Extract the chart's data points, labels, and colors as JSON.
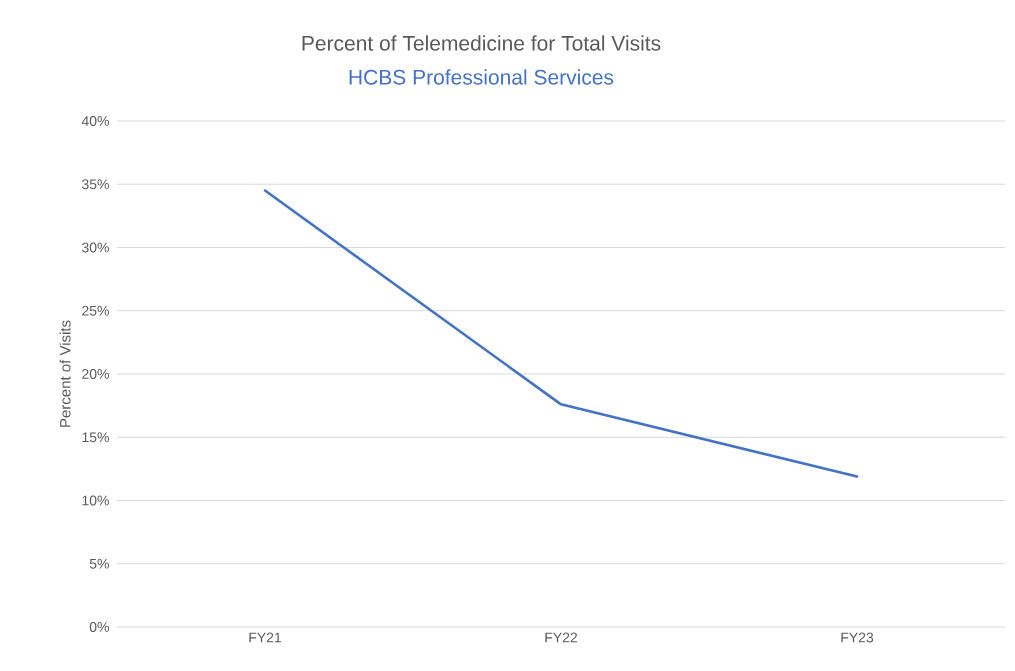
{
  "chart_data": {
    "type": "line",
    "title": "Percent of Telemedicine for Total Visits",
    "subtitle": "HCBS Professional Services",
    "ylabel": "Percent of Visits",
    "categories": [
      "FY21",
      "FY22",
      "FY23"
    ],
    "series": [
      {
        "color": "#4472c4",
        "values": [
          34.5,
          17.6,
          11.9
        ]
      }
    ],
    "ylim": [
      0,
      40
    ],
    "yticks": [
      {
        "value": 0,
        "label": "0%"
      },
      {
        "value": 5,
        "label": "5%"
      },
      {
        "value": 10,
        "label": "10%"
      },
      {
        "value": 15,
        "label": "15%"
      },
      {
        "value": 20,
        "label": "20%"
      },
      {
        "value": 25,
        "label": "25%"
      },
      {
        "value": 30,
        "label": "30%"
      },
      {
        "value": 35,
        "label": "35%"
      },
      {
        "value": 40,
        "label": "40%"
      }
    ],
    "grid": "y",
    "marker": "none",
    "line_style": "solid"
  }
}
